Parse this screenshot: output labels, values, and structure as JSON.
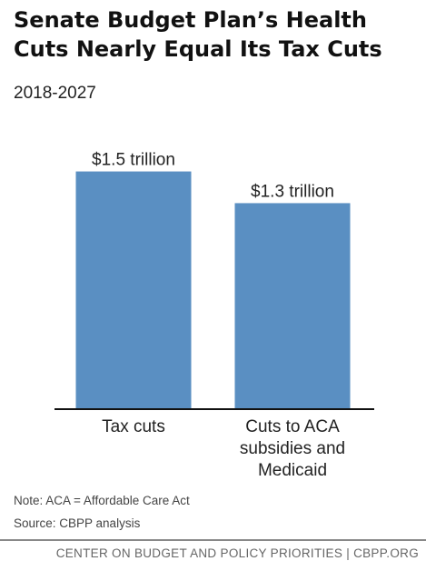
{
  "header": {
    "title": "Senate Budget Plan’s Health Cuts Nearly Equal Its Tax Cuts",
    "subtitle": "2018-2027"
  },
  "chart_data": {
    "type": "bar",
    "categories": [
      [
        "Tax cuts"
      ],
      [
        "Cuts to ACA",
        "subsidies and",
        "Medicaid"
      ]
    ],
    "values": [
      1.5,
      1.3
    ],
    "value_labels": [
      "$1.5 trillion",
      "$1.3 trillion"
    ],
    "unit": "trillion dollars",
    "ylim": [
      0,
      1.75
    ],
    "grid": false,
    "legend": "none",
    "bar_color": "#5a8fc2",
    "axis_color": "#111111"
  },
  "notes": {
    "note": "Note: ACA = Affordable Care Act",
    "source": "Source: CBPP analysis"
  },
  "footer": {
    "text": "CENTER ON BUDGET AND POLICY PRIORITIES | CBPP.ORG"
  }
}
